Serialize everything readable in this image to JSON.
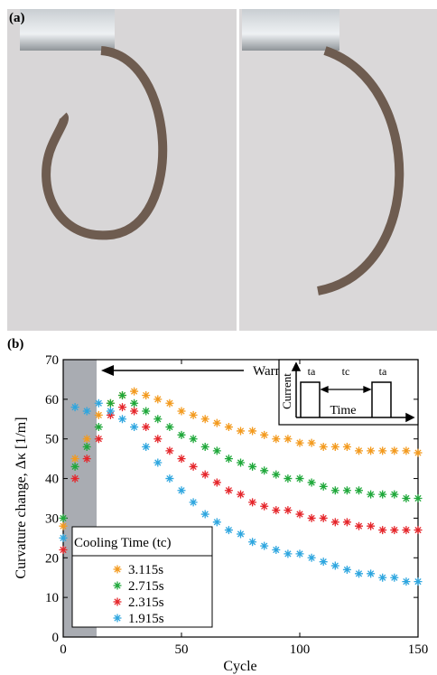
{
  "panels": {
    "a": "(a)",
    "b": "(b)"
  },
  "chart_data": {
    "type": "scatter",
    "y_label": "Curvature change, Δκ [1/m]",
    "x_label": "Cycle",
    "annotation": "Warm up",
    "inset": {
      "y_label": "Current",
      "x_label": "Time",
      "labels": [
        "ta",
        "tc",
        "ta"
      ]
    },
    "legend_title": "Cooling Time (tc)",
    "legend": "lower left",
    "x": [
      0,
      5,
      10,
      15,
      20,
      25,
      30,
      35,
      40,
      45,
      50,
      55,
      60,
      65,
      70,
      75,
      80,
      85,
      90,
      95,
      100,
      105,
      110,
      115,
      120,
      125,
      130,
      135,
      140,
      145,
      150
    ],
    "series": [
      {
        "name": "3.115s",
        "color": "#f39a1e",
        "values": [
          28,
          45,
          50,
          56,
          59,
          61,
          62,
          61,
          60,
          59,
          57,
          56,
          55,
          54,
          53,
          52,
          52,
          51,
          50,
          50,
          49,
          49,
          48,
          48,
          48,
          47,
          47,
          47,
          47,
          47,
          46.5
        ]
      },
      {
        "name": "2.715s",
        "color": "#1fa83a",
        "values": [
          30,
          43,
          48,
          53,
          59,
          61,
          59,
          57,
          55,
          53,
          51,
          50,
          48,
          47,
          45,
          44,
          43,
          42,
          41,
          40,
          40,
          39,
          38,
          37,
          37,
          37,
          36,
          36,
          36,
          35,
          35
        ]
      },
      {
        "name": "2.315s",
        "color": "#e5262b",
        "values": [
          22,
          40,
          45,
          50,
          56,
          58,
          57,
          53,
          50,
          47,
          45,
          43,
          41,
          39,
          37,
          36,
          34,
          33,
          32,
          32,
          31,
          30,
          30,
          29,
          29,
          28,
          28,
          27,
          27,
          27,
          27
        ]
      },
      {
        "name": "1.915s",
        "color": "#2ea6df",
        "values": [
          25,
          58,
          57,
          59,
          57,
          55,
          53,
          48,
          44,
          40,
          37,
          34,
          31,
          29,
          27,
          26,
          24,
          23,
          22,
          21,
          21,
          20,
          19,
          18,
          17,
          16,
          16,
          15,
          15,
          14,
          14
        ]
      }
    ],
    "xlim": [
      0,
      150
    ],
    "ylim": [
      0,
      70
    ],
    "xticks": [
      0,
      50,
      100,
      150
    ],
    "yticks": [
      0,
      10,
      20,
      30,
      40,
      50,
      60,
      70
    ]
  }
}
